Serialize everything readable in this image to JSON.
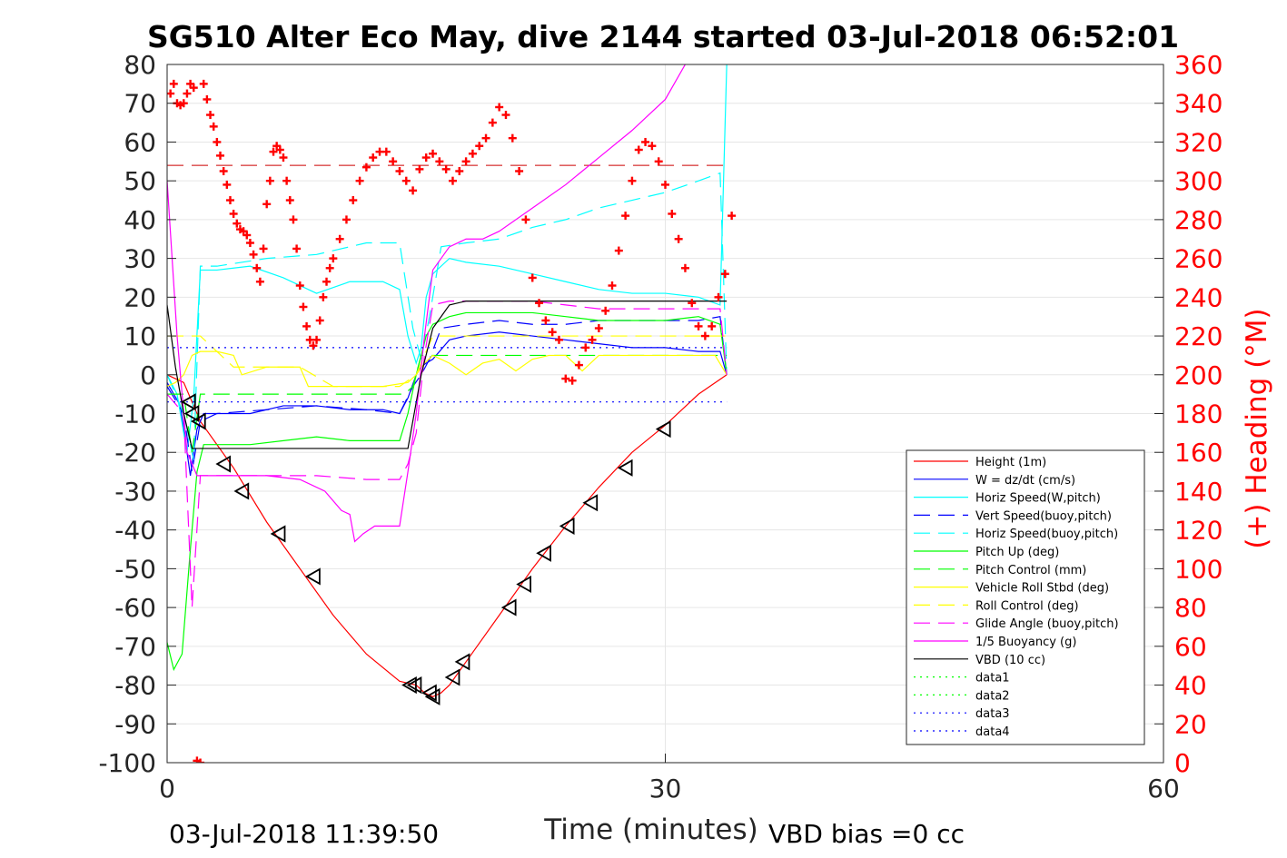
{
  "chart_data": {
    "type": "line",
    "title": "SG510 Alter Eco May, dive 2144 started 03-Jul-2018 06:52:01",
    "xlabel": "Time (minutes)",
    "ylabel": "",
    "y2label": "(+) Heading (°M)",
    "xlim": [
      0,
      60
    ],
    "ylim": [
      -100,
      80
    ],
    "y2lim": [
      0,
      360
    ],
    "xticks": [
      "0",
      "30",
      "60"
    ],
    "yticks": [
      "-100",
      "-90",
      "-80",
      "-70",
      "-60",
      "-50",
      "-40",
      "-30",
      "-20",
      "-10",
      "0",
      "10",
      "20",
      "30",
      "40",
      "50",
      "60",
      "70",
      "80"
    ],
    "y2ticks": [
      "0",
      "20",
      "40",
      "60",
      "80",
      "100",
      "120",
      "140",
      "160",
      "180",
      "200",
      "220",
      "240",
      "260",
      "280",
      "300",
      "320",
      "340",
      "360"
    ],
    "grid": true,
    "legend_position": "lower-right",
    "footer_left": "03-Jul-2018 11:39:50",
    "footer_right": "VBD bias =0 cc",
    "series": [
      {
        "name": "Height (1m)",
        "color": "#ff0000",
        "style": "solid",
        "x": [
          0,
          1,
          2,
          4,
          6,
          8,
          10,
          12,
          14,
          15,
          15.5,
          16,
          16.5,
          17,
          18,
          20,
          22,
          24,
          26,
          28,
          30,
          32,
          33.7
        ],
        "y": [
          0,
          -2,
          -12,
          -24,
          -38,
          -50,
          -62,
          -72,
          -79,
          -80,
          -82,
          -83,
          -82,
          -80,
          -74,
          -62,
          -50,
          -39,
          -29,
          -20,
          -13,
          -5,
          0
        ]
      },
      {
        "name": "W = dz/dt (cm/s)",
        "color": "#0000ff",
        "style": "solid",
        "x": [
          0,
          0.8,
          1.4,
          1.8,
          2.2,
          3,
          5,
          7,
          9,
          11,
          13,
          14,
          14.5,
          15,
          15.3,
          15.6,
          16,
          17,
          18,
          20,
          22,
          24,
          26,
          28,
          30,
          32,
          33.3,
          33.7
        ],
        "y": [
          -2,
          -8,
          -26,
          -14,
          -10,
          -10,
          -10,
          -8,
          -8,
          -9,
          -9,
          -10,
          -6,
          0,
          2,
          3,
          4,
          9,
          10,
          11,
          10,
          9,
          8,
          7,
          7,
          6,
          6,
          0
        ]
      },
      {
        "name": "Horiz Speed(W,pitch)",
        "color": "#00ffff",
        "style": "solid",
        "x": [
          0,
          0.6,
          1.2,
          1.6,
          2,
          3,
          5,
          7,
          9,
          11,
          13,
          14,
          14.5,
          15,
          15.3,
          15.6,
          16,
          17,
          18,
          20,
          22,
          24,
          26,
          28,
          30,
          32,
          33.3,
          33.7
        ],
        "y": [
          0,
          -5,
          -20,
          -6,
          27,
          27,
          28,
          25,
          21,
          24,
          24,
          22,
          10,
          3,
          7,
          20,
          26,
          30,
          29,
          28,
          26,
          24,
          22,
          21,
          21,
          20,
          18,
          80
        ]
      },
      {
        "name": "Vert Speed(buoy,pitch)",
        "color": "#0000ff",
        "style": "dashed",
        "x": [
          0,
          1,
          1.5,
          2,
          3,
          6,
          9,
          12,
          14,
          14.8,
          15.3,
          15.8,
          16.5,
          18,
          20,
          22,
          24,
          26,
          28,
          30,
          32,
          33.3,
          33.7
        ],
        "y": [
          -3,
          -10,
          -25,
          -12,
          -10,
          -9,
          -8,
          -9,
          -10,
          -3,
          0,
          4,
          12,
          13,
          14,
          13,
          13,
          14,
          14,
          14,
          14,
          15,
          0
        ]
      },
      {
        "name": "Horiz Speed(buoy,pitch)",
        "color": "#00ffff",
        "style": "dashed",
        "x": [
          0,
          1,
          1.6,
          2,
          3,
          6,
          9,
          12,
          14,
          14.8,
          15.3,
          15.8,
          16.5,
          18,
          20,
          22,
          24,
          26,
          28,
          30,
          32,
          33.3,
          33.7
        ],
        "y": [
          0,
          -10,
          -22,
          28,
          28,
          30,
          31,
          34,
          34,
          12,
          4,
          15,
          33,
          34,
          35,
          38,
          40,
          43,
          45,
          47,
          50,
          52,
          0
        ]
      },
      {
        "name": "Pitch Up (deg)",
        "color": "#00ff00",
        "style": "solid",
        "x": [
          0,
          0.4,
          0.9,
          1.4,
          1.8,
          2.2,
          3,
          5,
          7,
          9,
          11,
          13,
          14,
          14.5,
          15,
          15.3,
          15.6,
          16,
          17,
          18,
          20,
          22,
          24,
          26,
          28,
          30,
          32,
          33.3,
          33.7
        ],
        "y": [
          -69,
          -76,
          -72,
          -45,
          -25,
          -18,
          -18,
          -18,
          -17,
          -16,
          -17,
          -17,
          -17,
          -10,
          0,
          5,
          10,
          13,
          15,
          16,
          16,
          16,
          15,
          14,
          14,
          14,
          15,
          13,
          0
        ]
      },
      {
        "name": "Pitch Control (mm)",
        "color": "#00ff00",
        "style": "dashed",
        "x": [
          0,
          1,
          1.5,
          2,
          14.3,
          14.8,
          15.3,
          33.7
        ],
        "y": [
          -5,
          -5,
          -20,
          -5,
          -5,
          -3,
          5,
          5
        ]
      },
      {
        "name": "Vehicle Roll Stbd (deg)",
        "color": "#ffff00",
        "style": "solid",
        "x": [
          0,
          0.5,
          1,
          1.5,
          2,
          3,
          4,
          4.5,
          6,
          8,
          8.5,
          11,
          13,
          14.5,
          15,
          15.5,
          16,
          17,
          18,
          19,
          20,
          21,
          22,
          23,
          24,
          25,
          26,
          28,
          30,
          32,
          33,
          33.7
        ],
        "y": [
          -3,
          -2,
          0,
          5,
          6,
          6,
          5,
          0,
          2,
          2,
          -3,
          -3,
          -3,
          -2,
          0,
          3,
          5,
          3,
          0,
          3,
          4,
          1,
          4,
          5,
          5,
          1,
          5,
          5,
          5,
          5,
          5,
          0
        ]
      },
      {
        "name": "Roll Control (deg)",
        "color": "#ffff00",
        "style": "dashed",
        "x": [
          0,
          1,
          2,
          4,
          6,
          8,
          10,
          12,
          14,
          15,
          16,
          18,
          20,
          22,
          24,
          26,
          28,
          30,
          32,
          33.7
        ],
        "y": [
          10,
          10,
          10,
          2,
          2,
          2,
          -3,
          -3,
          -3,
          0,
          10,
          10,
          10,
          10,
          10,
          10,
          10,
          10,
          10,
          10
        ]
      },
      {
        "name": "Glide Angle (buoy,pitch)",
        "color": "#ff00ff",
        "style": "dashed",
        "x": [
          0,
          1,
          1.5,
          2,
          3,
          6,
          9,
          12,
          14,
          14.5,
          15,
          15.5,
          16,
          17,
          18,
          20,
          22,
          24,
          26,
          28,
          30,
          32,
          33.3,
          33.7
        ],
        "y": [
          -5,
          -10,
          -60,
          -26,
          -26,
          -26,
          -26,
          -27,
          -27,
          -23,
          -15,
          5,
          18,
          19,
          19,
          19,
          19,
          18,
          17,
          17,
          17,
          17,
          17,
          0
        ]
      },
      {
        "name": "1/5 Buoyancy (g)",
        "color": "#ff00ff",
        "style": "solid",
        "x": [
          0,
          0.6,
          1.2,
          1.8,
          3,
          6,
          8,
          9.5,
          10.5,
          11,
          11.3,
          11.8,
          12.5,
          14,
          14.5,
          15,
          15.5,
          16,
          17,
          18,
          19,
          20,
          22,
          24,
          26,
          28,
          30,
          31.2
        ],
        "y": [
          50,
          10,
          -20,
          -26,
          -26,
          -26,
          -27,
          -30,
          -35,
          -36,
          -43,
          -41,
          -39,
          -39,
          -25,
          -10,
          10,
          27,
          33,
          35,
          35,
          37,
          43,
          49,
          56,
          63,
          71,
          80
        ]
      },
      {
        "name": "VBD (10 cc)",
        "color": "#000000",
        "style": "solid",
        "x": [
          0,
          0.5,
          1,
          1.5,
          2,
          3,
          6,
          9,
          12,
          14.5,
          15.3,
          16,
          17,
          18,
          20,
          22,
          24,
          26,
          28,
          30,
          32,
          33.7
        ],
        "y": [
          18,
          2,
          -10,
          -19,
          -19,
          -19,
          -19,
          -19,
          -19,
          -19,
          0,
          12,
          18,
          19,
          19,
          19,
          19,
          19,
          19,
          19,
          19,
          19
        ]
      },
      {
        "name": "data1",
        "color": "#00ff00",
        "style": "dotted",
        "x": [],
        "y": []
      },
      {
        "name": "data2",
        "color": "#00ff00",
        "style": "dotted",
        "x": [],
        "y": []
      },
      {
        "name": "data3",
        "color": "#0000ff",
        "style": "dotted",
        "x": [
          0,
          33.7
        ],
        "y": [
          7,
          7
        ]
      },
      {
        "name": "data4",
        "color": "#0000ff",
        "style": "dotted",
        "x": [
          0,
          33.7
        ],
        "y": [
          -7,
          -7
        ]
      }
    ],
    "reference_line": {
      "color": "#cc0000",
      "style": "dashed",
      "x": [
        0,
        33.7
      ],
      "y": [
        54,
        54
      ]
    },
    "height_markers": {
      "color": "#000000",
      "x": [
        1.3,
        1.5,
        1.9,
        3.4,
        4.5,
        6.7,
        8.8,
        14.6,
        14.9,
        15.8,
        16,
        17.2,
        17.8,
        20.6,
        21.5,
        22.7,
        24.1,
        25.5,
        27.6,
        29.9
      ],
      "y": [
        -7,
        -10,
        -12,
        -23,
        -30,
        -41,
        -52,
        -80,
        -80,
        -82,
        -83,
        -78,
        -74,
        -60,
        -54,
        -46,
        -39,
        -33,
        -24,
        -14
      ]
    },
    "heading": {
      "name": "(+) Heading (°M)",
      "color": "#ff0000",
      "marker": "+",
      "x": [
        0.2,
        0.4,
        0.6,
        0.8,
        1.0,
        1.2,
        1.4,
        1.6,
        1.8,
        2.0,
        2.2,
        2.4,
        2.6,
        2.8,
        3.0,
        3.2,
        3.4,
        3.6,
        3.8,
        4.0,
        4.2,
        4.4,
        4.6,
        4.8,
        5.0,
        5.2,
        5.4,
        5.6,
        5.8,
        6.0,
        6.2,
        6.4,
        6.6,
        6.8,
        7.0,
        7.2,
        7.4,
        7.6,
        7.8,
        8.0,
        8.2,
        8.4,
        8.6,
        8.8,
        9.0,
        9.2,
        9.4,
        9.6,
        9.8,
        10.0,
        10.4,
        10.8,
        11.2,
        11.6,
        12.0,
        12.4,
        12.8,
        13.2,
        13.6,
        14.0,
        14.4,
        14.8,
        15.2,
        15.6,
        16.0,
        16.4,
        16.8,
        17.2,
        17.6,
        18.0,
        18.4,
        18.8,
        19.2,
        19.6,
        20.0,
        20.4,
        20.8,
        21.2,
        21.6,
        22.0,
        22.4,
        22.8,
        23.2,
        23.6,
        24.0,
        24.4,
        24.8,
        25.2,
        25.6,
        26.0,
        26.4,
        26.8,
        27.2,
        27.6,
        28.0,
        28.4,
        28.8,
        29.2,
        29.6,
        30.0,
        30.4,
        30.8,
        31.2,
        31.6,
        32.0,
        32.4,
        32.8,
        33.2,
        33.6,
        34.0
      ],
      "y": [
        345,
        350,
        340,
        339,
        340,
        345,
        350,
        348,
        1,
        0,
        350,
        342,
        334,
        328,
        320,
        313,
        305,
        298,
        290,
        283,
        278,
        275,
        274,
        272,
        268,
        262,
        255,
        248,
        265,
        288,
        300,
        315,
        318,
        316,
        312,
        300,
        290,
        280,
        265,
        246,
        235,
        225,
        218,
        215,
        218,
        228,
        240,
        248,
        255,
        260,
        270,
        280,
        290,
        300,
        307,
        312,
        315,
        315,
        310,
        305,
        300,
        295,
        306,
        312,
        314,
        310,
        306,
        300,
        305,
        310,
        314,
        318,
        322,
        330,
        338,
        334,
        322,
        305,
        280,
        250,
        237,
        228,
        222,
        218,
        198,
        197,
        205,
        214,
        218,
        224,
        233,
        246,
        264,
        282,
        300,
        316,
        320,
        318,
        310,
        298,
        283,
        270,
        255,
        237,
        225,
        220,
        225,
        240,
        252,
        282
      ]
    }
  }
}
